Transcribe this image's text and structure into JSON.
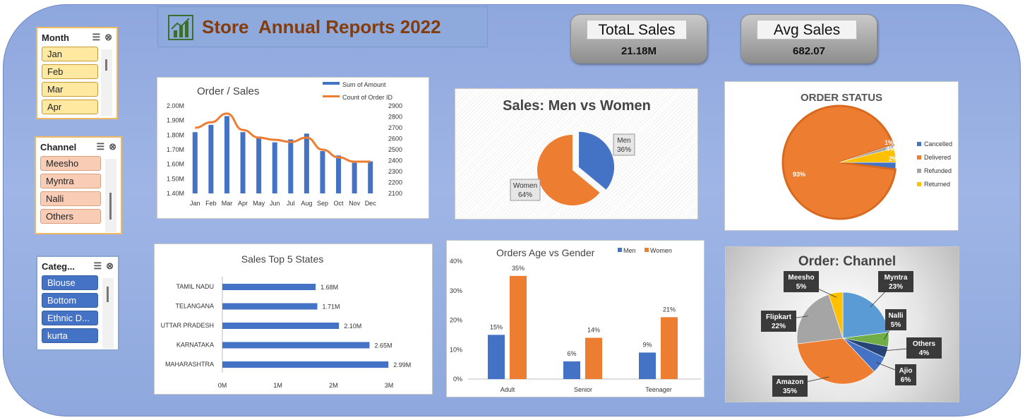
{
  "header": {
    "title": "Store  Annual Reports 2022"
  },
  "kpis": {
    "total_sales": {
      "label": "TotaL Sales",
      "value": "21.18M"
    },
    "avg_sales": {
      "label": "Avg Sales",
      "value": "682.07"
    }
  },
  "slicers": {
    "month": {
      "title": "Month",
      "items": [
        "Jan",
        "Feb",
        "Mar",
        "Apr"
      ]
    },
    "channel": {
      "title": "Channel",
      "items": [
        "Meesho",
        "Myntra",
        "Nalli",
        "Others"
      ]
    },
    "category": {
      "title": "Categ...",
      "items": [
        "Blouse",
        "Bottom",
        "Ethnic D...",
        "kurta"
      ]
    }
  },
  "chart_data": [
    {
      "type": "bar",
      "title": "Order / Sales",
      "categories": [
        "Jan",
        "Feb",
        "Mar",
        "Apr",
        "May",
        "Jun",
        "Jul",
        "Aug",
        "Sep",
        "Oct",
        "Nov",
        "Dec"
      ],
      "series": [
        {
          "name": "Sum of Amount",
          "kind": "bar",
          "axis": "left",
          "values": [
            1.82,
            1.87,
            1.93,
            1.82,
            1.79,
            1.75,
            1.77,
            1.81,
            1.69,
            1.66,
            1.61,
            1.62
          ]
        },
        {
          "name": "Count of Order ID",
          "kind": "line",
          "axis": "right",
          "values": [
            2700,
            2750,
            2830,
            2680,
            2610,
            2590,
            2570,
            2610,
            2500,
            2430,
            2390,
            2390
          ]
        }
      ],
      "y_left": {
        "ticks": [
          "1.40M",
          "1.50M",
          "1.60M",
          "1.70M",
          "1.80M",
          "1.90M",
          "2.00M"
        ],
        "range": [
          1.4,
          2.0
        ]
      },
      "y_right": {
        "ticks": [
          "2100",
          "2200",
          "2300",
          "2400",
          "2500",
          "2600",
          "2700",
          "2800",
          "2900"
        ],
        "range": [
          2100,
          2900
        ]
      },
      "colors": {
        "bar": "#4472c4",
        "line": "#ed7d31"
      }
    },
    {
      "type": "pie",
      "title": "Sales: Men vs Women",
      "labels": [
        "Men",
        "Women"
      ],
      "values": [
        36,
        64
      ],
      "value_labels": [
        "36%",
        "64%"
      ],
      "colors": [
        "#4472c4",
        "#ed7d31"
      ]
    },
    {
      "type": "pie",
      "title": "ORDER STATUS",
      "labels": [
        "Cancelled",
        "Delivered",
        "Refunded",
        "Returned"
      ],
      "values": [
        2,
        93,
        1,
        4
      ],
      "value_labels": [
        "2%",
        "93%",
        "1%",
        "4%"
      ],
      "colors": [
        "#4472c4",
        "#ed7d31",
        "#a5a5a5",
        "#ffc000"
      ],
      "legend": "right"
    },
    {
      "type": "bar",
      "orientation": "horizontal",
      "title": "Sales Top 5 States",
      "categories": [
        "TAMIL NADU",
        "TELANGANA",
        "UTTAR PRADESH",
        "KARNATAKA",
        "MAHARASHTRA"
      ],
      "values": [
        1.68,
        1.71,
        2.1,
        2.65,
        2.99
      ],
      "value_labels": [
        "1.68M",
        "1.71M",
        "2.10M",
        "2.65M",
        "2.99M"
      ],
      "x_ticks": [
        "0M",
        "1M",
        "2M",
        "3M"
      ],
      "xlim": [
        0,
        3
      ],
      "color": "#4472c4"
    },
    {
      "type": "bar",
      "title": "Orders Age vs Gender",
      "categories": [
        "Adult",
        "Senior",
        "Teenager"
      ],
      "series": [
        {
          "name": "Men",
          "values": [
            15,
            6,
            9
          ],
          "value_labels": [
            "15%",
            "6%",
            "9%"
          ]
        },
        {
          "name": "Women",
          "values": [
            35,
            14,
            21
          ],
          "value_labels": [
            "35%",
            "14%",
            "21%"
          ]
        }
      ],
      "y_ticks": [
        "0%",
        "10%",
        "20%",
        "30%",
        "40%"
      ],
      "ylim": [
        0,
        40
      ],
      "colors": [
        "#4472c4",
        "#ed7d31"
      ],
      "legend": "top"
    },
    {
      "type": "pie",
      "title": "Order: Channel",
      "labels": [
        "Myntra",
        "Nalli",
        "Ajio",
        "Amazon",
        "Flipkart",
        "Meesho",
        "Others"
      ],
      "order": [
        "Myntra",
        "Nalli",
        "Others",
        "Ajio",
        "Amazon",
        "Flipkart",
        "Meesho"
      ],
      "values": {
        "Myntra": 23,
        "Nalli": 5,
        "Others": 4,
        "Ajio": 6,
        "Amazon": 35,
        "Flipkart": 22,
        "Meesho": 5
      },
      "value_labels": {
        "Myntra": "23%",
        "Nalli": "5%",
        "Others": "4%",
        "Ajio": "6%",
        "Amazon": "35%",
        "Flipkart": "22%",
        "Meesho": "5%"
      },
      "colors": {
        "Myntra": "#5b9bd5",
        "Nalli": "#70ad47",
        "Others": "#264478",
        "Ajio": "#4472c4",
        "Amazon": "#ed7d31",
        "Flipkart": "#a5a5a5",
        "Meesho": "#ffc000"
      }
    }
  ]
}
